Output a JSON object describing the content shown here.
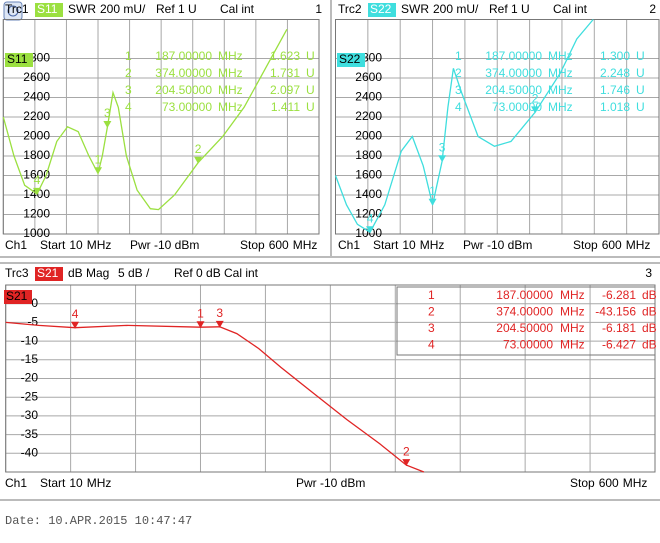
{
  "date": "Date: 10.APR.2015  10:47:47",
  "chart_data": [
    {
      "type": "line",
      "trace": "Trc1",
      "format": "SWR",
      "scale": "200 mU/",
      "ref": "Ref 1 U",
      "cal": "Cal int",
      "window": "1",
      "channel": "Ch1",
      "start": "Start",
      "stop": "Stop",
      "pwr": "Pwr -10 dBm",
      "x_unit": "MHz",
      "xlim": [
        10,
        600
      ],
      "xticks": [
        10,
        69,
        128,
        187,
        246,
        305,
        364,
        423,
        482,
        541,
        600
      ],
      "ylim": [
        1000,
        3200
      ],
      "yticks": [
        1000,
        1200,
        1400,
        1600,
        1800,
        2000,
        2200,
        2400,
        2600,
        2800
      ],
      "grid": true,
      "x": [
        10,
        30,
        50,
        73,
        90,
        110,
        130,
        150,
        170,
        187,
        195,
        204.5,
        215,
        225,
        240,
        260,
        285,
        300,
        330,
        374,
        420,
        460,
        500,
        540
      ],
      "series": [
        {
          "name": "S11",
          "color": "#9be040",
          "values": [
            2200,
            1800,
            1500,
            1411,
            1600,
            1950,
            2100,
            2050,
            1800,
            1623,
            1800,
            2097,
            2450,
            2300,
            1800,
            1450,
            1260,
            1250,
            1400,
            1731,
            2000,
            2300,
            2700,
            3100
          ]
        }
      ],
      "markers": [
        {
          "name": "1",
          "x": 187,
          "x_label": "187.00000",
          "value": 1623,
          "value_label": "1.623",
          "unit": "U"
        },
        {
          "name": "2",
          "x": 374,
          "x_label": "374.00000",
          "value": 1731,
          "value_label": "1.731",
          "unit": "U"
        },
        {
          "name": "3",
          "x": 204.5,
          "x_label": "204.50000",
          "value": 2097,
          "value_label": "2.097",
          "unit": "U"
        },
        {
          "name": "4",
          "x": 73,
          "x_label": "73.00000",
          "value": 1411,
          "value_label": "1.411",
          "unit": "U"
        }
      ]
    },
    {
      "type": "line",
      "trace": "Trc2",
      "format": "SWR",
      "scale": "200 mU/",
      "ref": "Ref 1 U",
      "cal": "Cal int",
      "window": "2",
      "channel": "Ch1",
      "start": "Start",
      "stop": "Stop",
      "pwr": "Pwr -10 dBm",
      "x_unit": "MHz",
      "xlim": [
        10,
        600
      ],
      "xticks": [
        10,
        69,
        128,
        187,
        246,
        305,
        364,
        423,
        482,
        541,
        600
      ],
      "ylim": [
        1000,
        3200
      ],
      "yticks": [
        1000,
        1200,
        1400,
        1600,
        1800,
        2000,
        2200,
        2400,
        2600,
        2800
      ],
      "grid": true,
      "x": [
        10,
        30,
        50,
        73,
        100,
        130,
        150,
        170,
        187,
        204.5,
        215,
        225,
        240,
        270,
        300,
        330,
        374,
        420,
        450,
        480
      ],
      "series": [
        {
          "name": "S22",
          "color": "#3fdede",
          "values": [
            1600,
            1300,
            1100,
            1018,
            1300,
            1850,
            2000,
            1700,
            1300,
            1746,
            2300,
            2700,
            2450,
            2000,
            1900,
            1950,
            2248,
            2650,
            3000,
            3200
          ]
        }
      ],
      "markers": [
        {
          "name": "1",
          "x": 187,
          "x_label": "187.00000",
          "value": 1300,
          "value_label": "1.300",
          "unit": "U"
        },
        {
          "name": "2",
          "x": 374,
          "x_label": "374.00000",
          "value": 2248,
          "value_label": "2.248",
          "unit": "U"
        },
        {
          "name": "3",
          "x": 204.5,
          "x_label": "204.50000",
          "value": 1746,
          "value_label": "1.746",
          "unit": "U"
        },
        {
          "name": "4",
          "x": 73,
          "x_label": "73.00000",
          "value": 1018,
          "value_label": "1.018",
          "unit": "U"
        }
      ]
    },
    {
      "type": "line",
      "trace": "Trc3",
      "format": "dB Mag",
      "scale": "5 dB /",
      "ref": "Ref 0 dB",
      "cal": "Cal int",
      "window": "3",
      "channel": "Ch1",
      "start": "Start",
      "stop": "Stop",
      "pwr": "Pwr -10 dBm",
      "x_unit": "MHz",
      "xlim": [
        10,
        600
      ],
      "xticks": [
        10,
        69,
        128,
        187,
        246,
        305,
        364,
        423,
        482,
        541,
        600
      ],
      "ylim": [
        -45,
        5
      ],
      "yticks": [
        -40,
        -35,
        -30,
        -25,
        -20,
        -15,
        -10,
        -5,
        0
      ],
      "grid": true,
      "x": [
        10,
        40,
        73,
        120,
        187,
        204.5,
        220,
        240,
        260,
        290,
        320,
        350,
        374,
        390
      ],
      "series": [
        {
          "name": "S21",
          "color": "#e02424",
          "values": [
            -5,
            -5.8,
            -6.427,
            -5.8,
            -6.281,
            -6.181,
            -8,
            -12,
            -17,
            -24,
            -31,
            -37.5,
            -43.156,
            -45
          ]
        }
      ],
      "markers": [
        {
          "name": "1",
          "x": 187,
          "x_label": "187.00000",
          "value": -6.281,
          "value_label": "-6.281",
          "unit": "dB"
        },
        {
          "name": "2",
          "x": 374,
          "x_label": "374.00000",
          "value": -43.156,
          "value_label": "-43.156",
          "unit": "dB"
        },
        {
          "name": "3",
          "x": 204.5,
          "x_label": "204.50000",
          "value": -6.181,
          "value_label": "-6.181",
          "unit": "dB"
        },
        {
          "name": "4",
          "x": 73,
          "x_label": "73.00000",
          "value": -6.427,
          "value_label": "-6.427",
          "unit": "dB"
        }
      ]
    }
  ]
}
